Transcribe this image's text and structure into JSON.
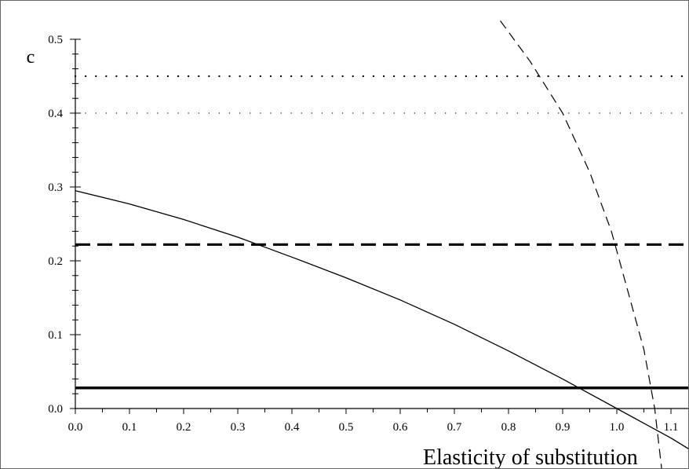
{
  "chart_data": {
    "type": "line",
    "title": "",
    "xlabel": "Elasticity of substitution",
    "ylabel": "c",
    "xlim": [
      0.0,
      1.14
    ],
    "ylim": [
      0.0,
      0.5
    ],
    "xticks": [
      "0.0",
      "0.1",
      "0.2",
      "0.3",
      "0.4",
      "0.5",
      "0.6",
      "0.7",
      "0.8",
      "0.9",
      "1.0",
      "1.1"
    ],
    "yticks": [
      "0.0",
      "0.1",
      "0.2",
      "0.3",
      "0.4",
      "0.5"
    ],
    "grid": false,
    "legend": "none",
    "series": [
      {
        "style": "solid-thin",
        "color": "#000000",
        "x": [
          0.0,
          0.1,
          0.2,
          0.3,
          0.4,
          0.5,
          0.6,
          0.7,
          0.8,
          0.9,
          1.0,
          1.05,
          1.1,
          1.14
        ],
        "y": [
          0.295,
          0.277,
          0.256,
          0.232,
          0.205,
          0.177,
          0.147,
          0.114,
          0.078,
          0.04,
          0.0,
          -0.02,
          -0.04,
          -0.058
        ]
      },
      {
        "style": "dashed-thin",
        "color": "#000000",
        "x": [
          0.785,
          0.84,
          0.9,
          0.95,
          0.99,
          1.02,
          1.05,
          1.07,
          1.085
        ],
        "y": [
          0.525,
          0.47,
          0.4,
          0.32,
          0.24,
          0.16,
          0.08,
          0.0,
          -0.095
        ]
      },
      {
        "style": "solid-thick",
        "color": "#000000",
        "x": [
          0.0,
          1.14
        ],
        "y": [
          0.028,
          0.028
        ]
      },
      {
        "style": "dashed-thick",
        "color": "#000000",
        "x": [
          0.0,
          1.14
        ],
        "y": [
          0.222,
          0.222
        ]
      },
      {
        "style": "dotted-thick",
        "color": "#000000",
        "x": [
          0.0,
          1.14
        ],
        "y": [
          0.45,
          0.45
        ]
      },
      {
        "style": "dotted-thin",
        "color": "#000000",
        "x": [
          0.0,
          1.14
        ],
        "y": [
          0.4,
          0.4
        ]
      }
    ]
  }
}
